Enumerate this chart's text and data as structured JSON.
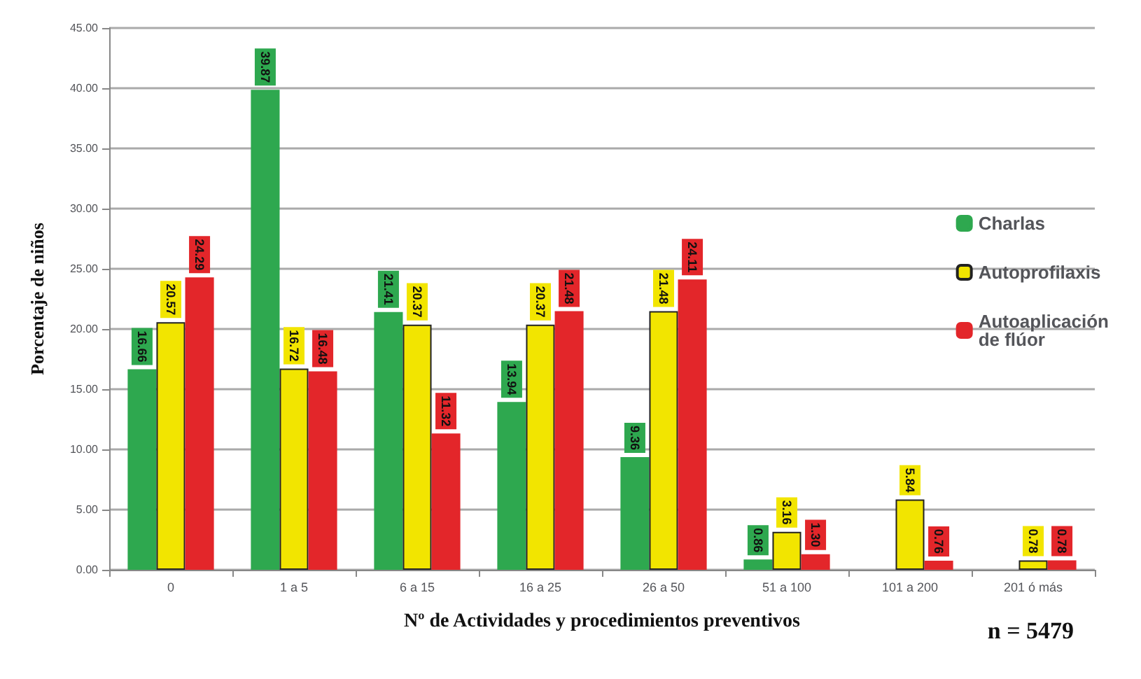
{
  "chart_data": {
    "type": "bar",
    "xlabel": "Nº de Actividades y procedimientos preventivos",
    "ylabel": "Porcentaje de niños",
    "categories": [
      "0",
      "1 a 5",
      "6 a 15",
      "16 a 25",
      "26 a 50",
      "51 a 100",
      "101 a 200",
      "201 ó más"
    ],
    "series": [
      {
        "name": "Charlas",
        "color": "#2ea84f",
        "values": [
          16.66,
          39.87,
          21.41,
          13.94,
          9.36,
          0.86,
          null,
          null
        ],
        "value_labels": [
          "16.66",
          "39.87",
          "21.41",
          "13.94",
          "9.36",
          "0.86",
          null,
          null
        ]
      },
      {
        "name": "Autoprofilaxis",
        "color": "#f2e500",
        "values": [
          20.57,
          16.72,
          20.37,
          20.37,
          21.48,
          3.16,
          5.84,
          0.78
        ],
        "value_labels": [
          "20.57",
          "16.72",
          "20.37",
          "20.37",
          "21.48",
          "3.16",
          "5.84",
          "0.78"
        ]
      },
      {
        "name": "Autoaplicación de flúor",
        "color": "#e3262a",
        "values": [
          24.29,
          16.48,
          11.32,
          21.48,
          24.11,
          1.3,
          0.76,
          0.78
        ],
        "value_labels": [
          "24.29",
          "16.48",
          "11.32",
          "21.48",
          "24.11",
          "1.30",
          "0.76",
          "0.78"
        ]
      }
    ],
    "ylim": [
      0,
      45
    ],
    "yticks": [
      {
        "value": 0,
        "label": "0.00"
      },
      {
        "value": 5,
        "label": "5.00"
      },
      {
        "value": 10,
        "label": "10.00"
      },
      {
        "value": 15,
        "label": "15.00"
      },
      {
        "value": 20,
        "label": "20.00"
      },
      {
        "value": 25,
        "label": "25.00"
      },
      {
        "value": 30,
        "label": "30.00"
      },
      {
        "value": 35,
        "label": "35.00"
      },
      {
        "value": 40,
        "label": "40.00"
      },
      {
        "value": 45,
        "label": "45.00"
      }
    ],
    "grid": "y",
    "legend": "right",
    "annotations": [
      "n = 5479"
    ]
  }
}
